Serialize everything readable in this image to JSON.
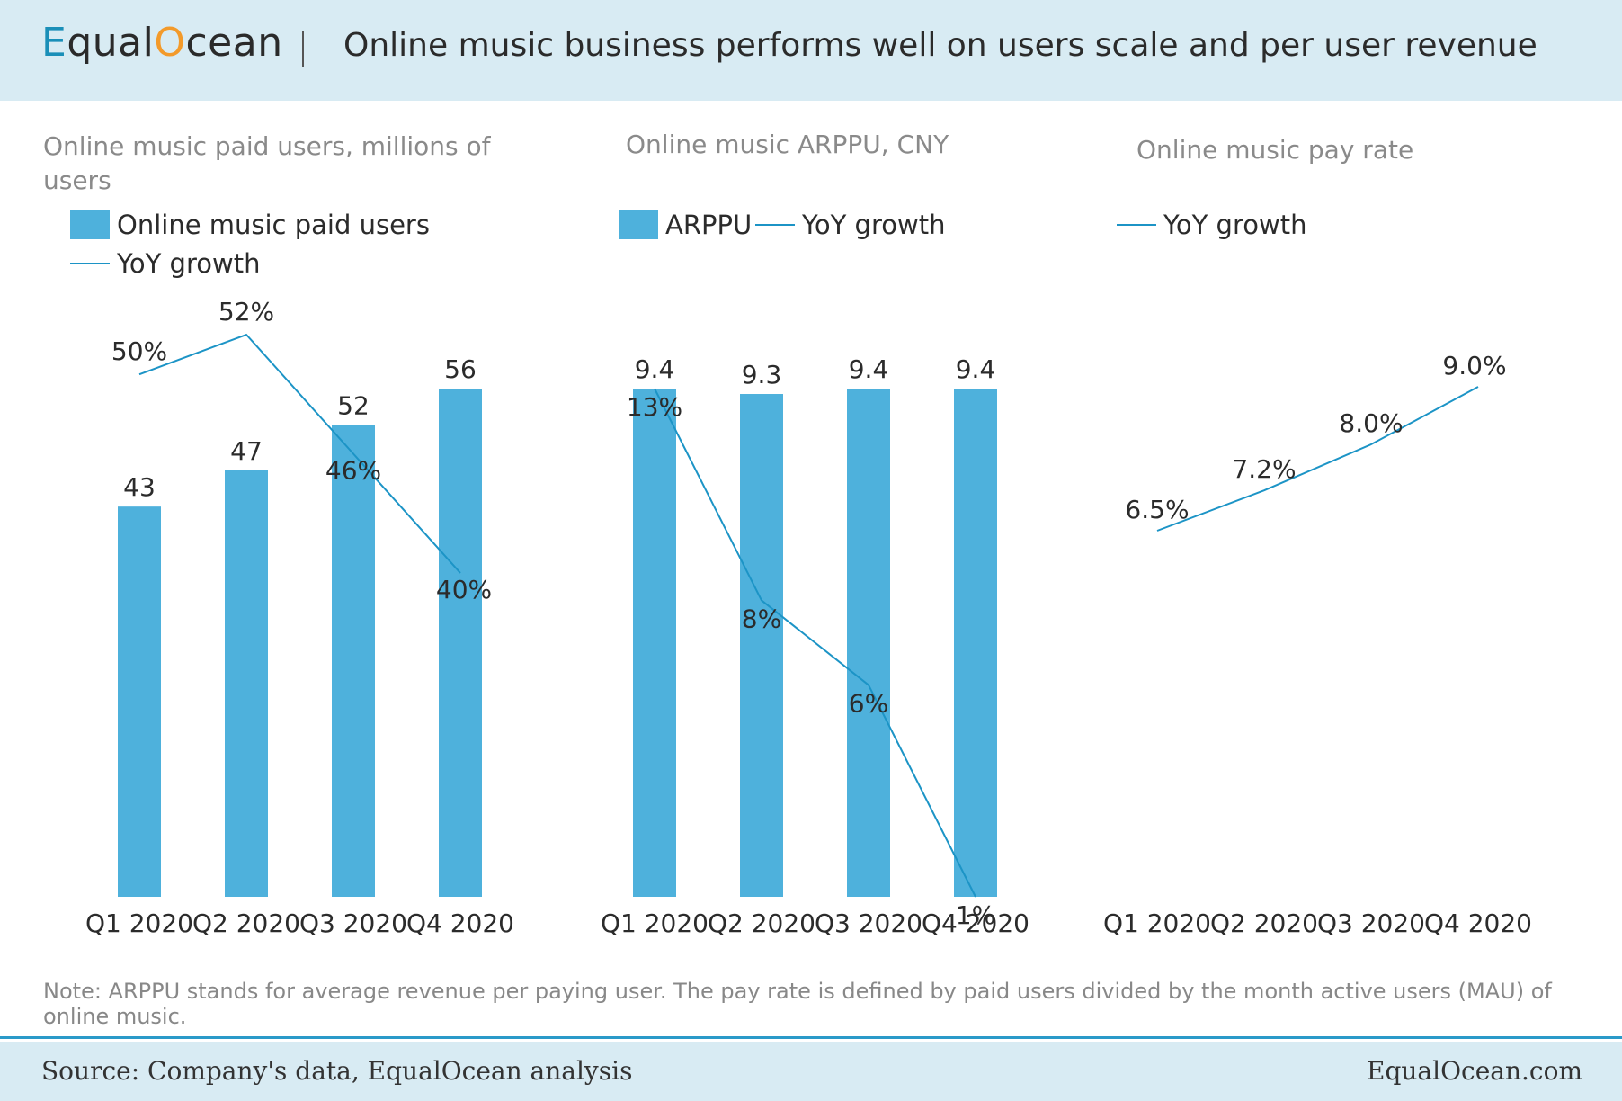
{
  "header": {
    "logo_parts": [
      "E",
      "qual",
      "O",
      "cean"
    ],
    "title": "Online music business performs well on users scale and per user revenue"
  },
  "chart_data": [
    {
      "type": "bar",
      "title": "Online music paid users, millions of users",
      "categories": [
        "Q1 2020",
        "Q2 2020",
        "Q3 2020",
        "Q4 2020"
      ],
      "series": [
        {
          "name": "Online music paid users",
          "type": "bar",
          "values": [
            43,
            47,
            52,
            56
          ],
          "labels": [
            "43",
            "47",
            "52",
            "56"
          ]
        },
        {
          "name": "YoY growth",
          "type": "line",
          "values": [
            0.5,
            0.52,
            0.46,
            0.4
          ],
          "labels": [
            "50%",
            "52%",
            "46%",
            "40%"
          ]
        }
      ]
    },
    {
      "type": "bar",
      "title": "Online music ARPPU, CNY",
      "categories": [
        "Q1 2020",
        "Q2 2020",
        "Q3 2020",
        "Q4 2020"
      ],
      "series": [
        {
          "name": "ARPPU",
          "type": "bar",
          "values": [
            9.4,
            9.3,
            9.4,
            9.4
          ],
          "labels": [
            "9.4",
            "9.3",
            "9.4",
            "9.4"
          ]
        },
        {
          "name": "YoY growth",
          "type": "line",
          "values": [
            0.13,
            0.08,
            0.06,
            0.01
          ],
          "labels": [
            "13%",
            "8%",
            "6%",
            "1%"
          ]
        }
      ]
    },
    {
      "type": "line",
      "title": "Online music pay rate",
      "categories": [
        "Q1 2020",
        "Q2 2020",
        "Q3 2020",
        "Q4 2020"
      ],
      "series": [
        {
          "name": "YoY growth",
          "type": "line",
          "values": [
            0.065,
            0.072,
            0.08,
            0.09
          ],
          "labels": [
            "6.5%",
            "7.2%",
            "8.0%",
            "9.0%"
          ]
        }
      ]
    }
  ],
  "colors": {
    "bar": "#4eb1dc",
    "line": "#1c94c6",
    "text": "#2b2b2b",
    "subtitle": "#8a8a8a"
  },
  "note": "Note: ARPPU stands for average revenue per paying user. The pay rate is defined by paid users divided by the month active users (MAU) of online music.",
  "footer": {
    "source": "Source: Company's data, EqualOcean analysis",
    "site": "EqualOcean.com"
  }
}
